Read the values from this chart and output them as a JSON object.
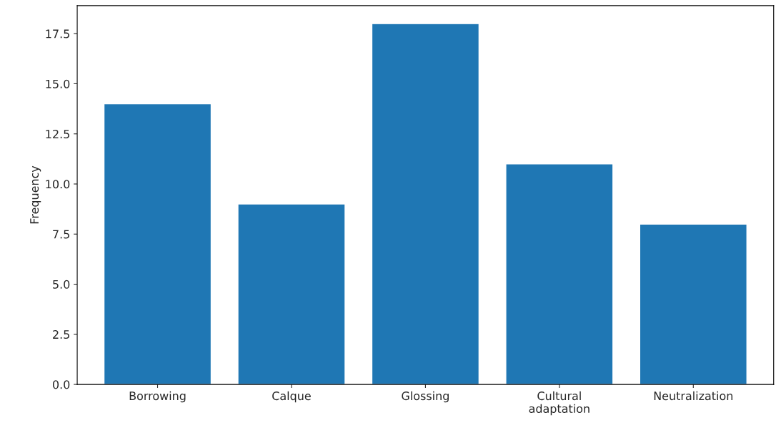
{
  "chart_data": {
    "type": "bar",
    "ylabel": "Frequency",
    "categories": [
      "Borrowing",
      "Calque",
      "Glossing",
      "Cultural\nadaptation",
      "Neutralization"
    ],
    "values": [
      14,
      9,
      18,
      11,
      8
    ],
    "color": "#1f77b4",
    "ylim": [
      0,
      18.9
    ],
    "yticks": [
      {
        "value": 0,
        "label": "0.0"
      },
      2.5,
      {
        "value": 5,
        "label": "5.0"
      },
      7.5,
      {
        "value": 10,
        "label": "10.0"
      },
      12.5,
      {
        "value": 15,
        "label": "15.0"
      },
      17.5
    ],
    "grid": false
  }
}
